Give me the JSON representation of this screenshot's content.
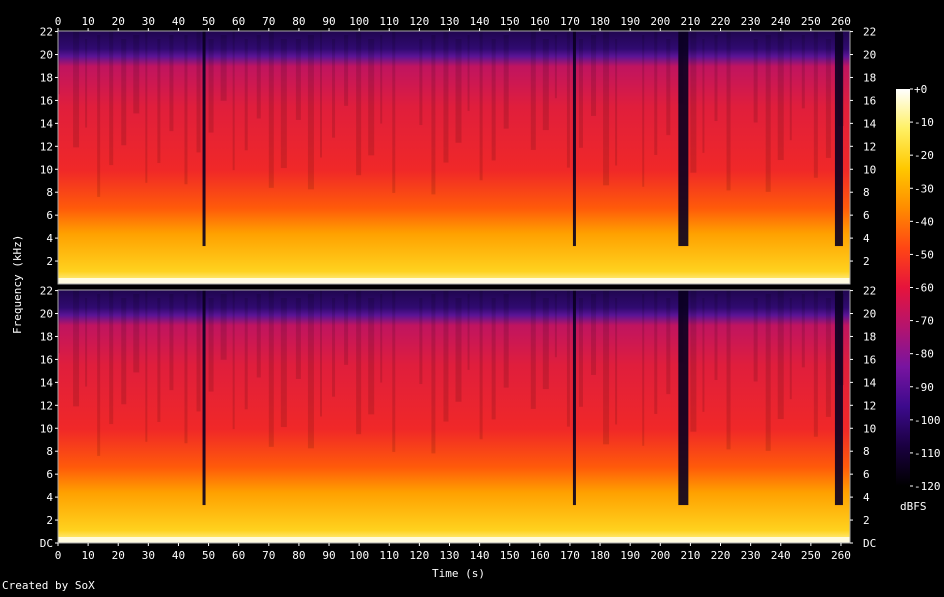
{
  "chart_data": {
    "type": "heatmap",
    "subtype": "spectrogram",
    "channels": 2,
    "xlabel": "Time (s)",
    "ylabel": "Frequency (kHz)",
    "xlim": [
      0,
      263
    ],
    "ylim": [
      0,
      22.05
    ],
    "x_ticks": [
      "0",
      "10",
      "20",
      "30",
      "40",
      "50",
      "60",
      "70",
      "80",
      "90",
      "100",
      "110",
      "120",
      "130",
      "140",
      "150",
      "160",
      "170",
      "180",
      "190",
      "200",
      "210",
      "220",
      "230",
      "240",
      "250",
      "260"
    ],
    "y_ticks_top": [
      "2",
      "4",
      "6",
      "8",
      "10",
      "12",
      "14",
      "16",
      "18",
      "20",
      "22"
    ],
    "y_ticks_bottom": [
      "DC",
      "2",
      "4",
      "6",
      "8",
      "10",
      "12",
      "14",
      "16",
      "18",
      "20",
      "22"
    ],
    "colorbar": {
      "label": "dBFS",
      "range": [
        -120,
        0
      ],
      "ticks": [
        "+0",
        "-10",
        "-20",
        "-30",
        "-40",
        "-50",
        "-60",
        "-70",
        "-80",
        "-90",
        "-100",
        "-110",
        "-120"
      ],
      "colors": [
        "#000000",
        "#1a0040",
        "#3c0a8c",
        "#7814a0",
        "#b4146e",
        "#e6143c",
        "#ff4614",
        "#ff8c00",
        "#ffc800",
        "#fff064",
        "#ffffff"
      ]
    },
    "dropouts_s": [
      48,
      171,
      206,
      258
    ],
    "lowpass_cutoff_khz": 20
  },
  "footer": {
    "credit": "Created by SoX"
  }
}
